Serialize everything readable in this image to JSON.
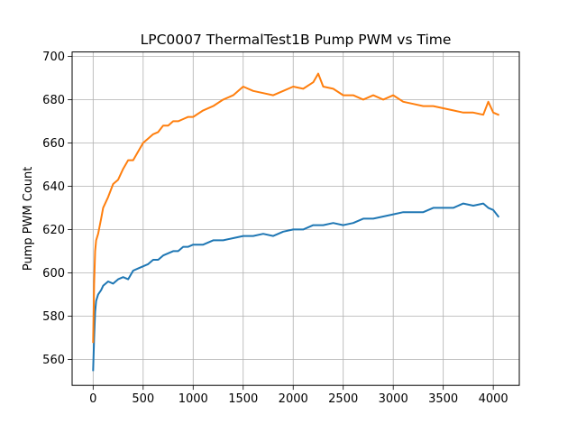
{
  "chart_data": {
    "type": "line",
    "title": "LPC0007 ThermalTest1B Pump PWM vs Time",
    "xlabel": "",
    "ylabel": "Pump PWM Count",
    "xlim": [
      -210,
      4260
    ],
    "ylim": [
      548,
      702
    ],
    "x_ticks": [
      0,
      500,
      1000,
      1500,
      2000,
      2500,
      3000,
      3500,
      4000
    ],
    "y_ticks": [
      560,
      580,
      600,
      620,
      640,
      660,
      680,
      700
    ],
    "grid": true,
    "legend": "none",
    "series": [
      {
        "color": "#1f77b4",
        "x": [
          0,
          10,
          20,
          30,
          50,
          80,
          100,
          150,
          200,
          250,
          300,
          350,
          400,
          450,
          500,
          550,
          600,
          650,
          700,
          750,
          800,
          850,
          900,
          950,
          1000,
          1100,
          1200,
          1300,
          1400,
          1500,
          1600,
          1700,
          1800,
          1900,
          2000,
          2100,
          2200,
          2300,
          2400,
          2500,
          2600,
          2700,
          2800,
          2900,
          3000,
          3100,
          3200,
          3300,
          3400,
          3500,
          3600,
          3700,
          3800,
          3900,
          3950,
          4000,
          4050
        ],
        "y": [
          555,
          570,
          582,
          587,
          590,
          592,
          594,
          596,
          595,
          597,
          598,
          597,
          601,
          602,
          603,
          604,
          606,
          606,
          608,
          609,
          610,
          610,
          612,
          612,
          613,
          613,
          615,
          615,
          616,
          617,
          617,
          618,
          617,
          619,
          620,
          620,
          622,
          622,
          623,
          622,
          623,
          625,
          625,
          626,
          627,
          628,
          628,
          628,
          630,
          630,
          630,
          632,
          631,
          632,
          630,
          629,
          626
        ]
      },
      {
        "color": "#ff7f0e",
        "x": [
          0,
          10,
          20,
          30,
          50,
          80,
          100,
          150,
          200,
          250,
          300,
          350,
          400,
          450,
          500,
          550,
          600,
          650,
          700,
          750,
          800,
          850,
          900,
          950,
          1000,
          1100,
          1200,
          1300,
          1400,
          1500,
          1600,
          1700,
          1800,
          1900,
          2000,
          2100,
          2200,
          2250,
          2300,
          2400,
          2500,
          2600,
          2700,
          2800,
          2900,
          3000,
          3100,
          3200,
          3300,
          3400,
          3500,
          3600,
          3700,
          3800,
          3900,
          3950,
          4000,
          4050
        ],
        "y": [
          568,
          595,
          610,
          615,
          618,
          625,
          630,
          635,
          641,
          643,
          648,
          652,
          652,
          656,
          660,
          662,
          664,
          665,
          668,
          668,
          670,
          670,
          671,
          672,
          672,
          675,
          677,
          680,
          682,
          686,
          684,
          683,
          682,
          684,
          686,
          685,
          688,
          692,
          686,
          685,
          682,
          682,
          680,
          682,
          680,
          682,
          679,
          678,
          677,
          677,
          676,
          675,
          674,
          674,
          673,
          679,
          674,
          673
        ]
      }
    ]
  }
}
